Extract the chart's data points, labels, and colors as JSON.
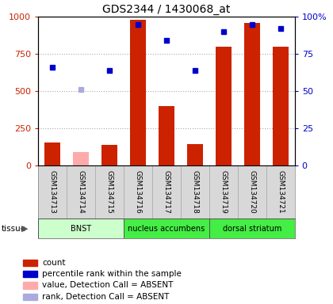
{
  "title": "GDS2344 / 1430068_at",
  "samples": [
    "GSM134713",
    "GSM134714",
    "GSM134715",
    "GSM134716",
    "GSM134717",
    "GSM134718",
    "GSM134719",
    "GSM134720",
    "GSM134721"
  ],
  "count_values": [
    155,
    null,
    140,
    980,
    400,
    145,
    800,
    960,
    800
  ],
  "count_absent": [
    null,
    90,
    null,
    null,
    null,
    null,
    null,
    null,
    null
  ],
  "rank_values": [
    660,
    null,
    640,
    950,
    840,
    640,
    900,
    950,
    920
  ],
  "rank_absent": [
    null,
    510,
    null,
    null,
    null,
    null,
    null,
    null,
    null
  ],
  "tissues": [
    {
      "label": "BNST",
      "start": 0,
      "end": 3,
      "color": "#ccffcc"
    },
    {
      "label": "nucleus accumbens",
      "start": 3,
      "end": 6,
      "color": "#44ee44"
    },
    {
      "label": "dorsal striatum",
      "start": 6,
      "end": 9,
      "color": "#44ee44"
    }
  ],
  "ylim_left": [
    0,
    1000
  ],
  "ylim_right": [
    0,
    100
  ],
  "yticks_left": [
    0,
    250,
    500,
    750,
    1000
  ],
  "yticks_right": [
    0,
    25,
    50,
    75,
    100
  ],
  "ytick_labels_left": [
    "0",
    "250",
    "500",
    "750",
    "1000"
  ],
  "ytick_labels_right": [
    "0",
    "25",
    "50",
    "75",
    "100%"
  ],
  "bar_color": "#cc2200",
  "bar_absent_color": "#ffaaaa",
  "rank_color": "#0000cc",
  "rank_absent_color": "#aaaadd",
  "bar_width": 0.55
}
